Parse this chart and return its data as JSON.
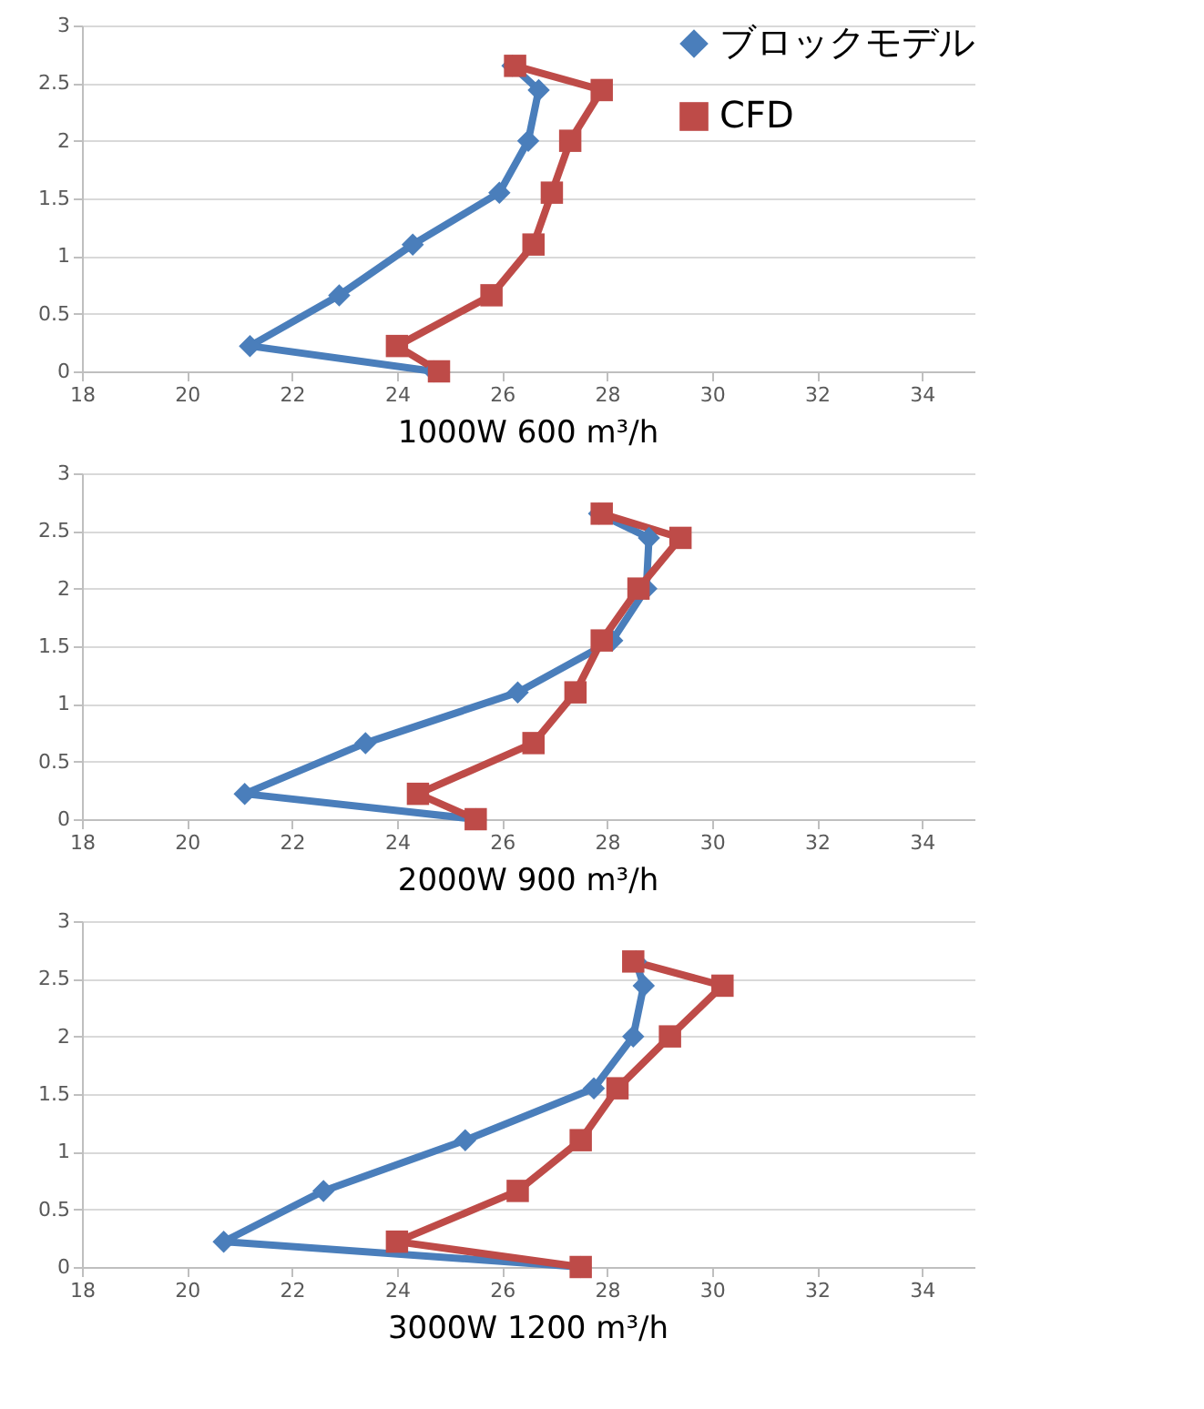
{
  "chart_data": [
    {
      "type": "line",
      "title": "1000W 600 m³/h",
      "xlim": [
        18,
        35
      ],
      "xticks": [
        18,
        20,
        22,
        24,
        26,
        28,
        30,
        32,
        34
      ],
      "ylim": [
        0,
        3
      ],
      "yticks": [
        0,
        0.5,
        1,
        1.5,
        2,
        2.5,
        3
      ],
      "grid": "y",
      "legend": "top right",
      "series": [
        {
          "name": "ブロックモデル",
          "color": "#4a7ebb",
          "marker": "diamond",
          "x": [
            24.7,
            21.2,
            22.9,
            24.3,
            25.95,
            26.5,
            26.7,
            26.2
          ],
          "values": [
            0,
            0.22,
            0.66,
            1.1,
            1.55,
            2.0,
            2.44,
            2.65
          ]
        },
        {
          "name": "CFD",
          "color": "#be4b48",
          "marker": "square",
          "x": [
            24.8,
            24.0,
            25.8,
            26.6,
            26.95,
            27.3,
            27.9,
            26.25
          ],
          "values": [
            0,
            0.22,
            0.66,
            1.1,
            1.55,
            2.0,
            2.44,
            2.65
          ]
        }
      ]
    },
    {
      "type": "line",
      "title": "2000W 900 m³/h",
      "xlim": [
        18,
        35
      ],
      "xticks": [
        18,
        20,
        22,
        24,
        26,
        28,
        30,
        32,
        34
      ],
      "ylim": [
        0,
        3
      ],
      "yticks": [
        0,
        0.5,
        1,
        1.5,
        2,
        2.5,
        3
      ],
      "grid": "y",
      "series": [
        {
          "color": "#4a7ebb",
          "marker": "diamond",
          "x": [
            25.5,
            21.1,
            23.4,
            26.3,
            28.1,
            28.75,
            28.8,
            27.85
          ],
          "values": [
            0,
            0.22,
            0.66,
            1.1,
            1.55,
            2.0,
            2.44,
            2.65
          ]
        },
        {
          "color": "#be4b48",
          "marker": "square",
          "x": [
            25.5,
            24.4,
            26.6,
            27.4,
            27.9,
            28.6,
            29.4,
            27.9
          ],
          "values": [
            0,
            0.22,
            0.66,
            1.1,
            1.55,
            2.0,
            2.44,
            2.65
          ]
        }
      ]
    },
    {
      "type": "line",
      "title": "3000W 1200 m³/h",
      "xlim": [
        18,
        35
      ],
      "xticks": [
        18,
        20,
        22,
        24,
        26,
        28,
        30,
        32,
        34
      ],
      "ylim": [
        0,
        3
      ],
      "yticks": [
        0,
        0.5,
        1,
        1.5,
        2,
        2.5,
        3
      ],
      "grid": "y",
      "series": [
        {
          "color": "#4a7ebb",
          "marker": "diamond",
          "x": [
            27.5,
            20.7,
            22.6,
            25.3,
            27.75,
            28.5,
            28.7,
            28.55
          ],
          "values": [
            0,
            0.22,
            0.66,
            1.1,
            1.55,
            2.0,
            2.44,
            2.65
          ]
        },
        {
          "color": "#be4b48",
          "marker": "square",
          "x": [
            27.5,
            24.0,
            26.3,
            27.5,
            28.2,
            29.2,
            30.2,
            28.5
          ],
          "values": [
            0,
            0.22,
            0.66,
            1.1,
            1.55,
            2.0,
            2.44,
            2.65
          ]
        }
      ]
    }
  ]
}
